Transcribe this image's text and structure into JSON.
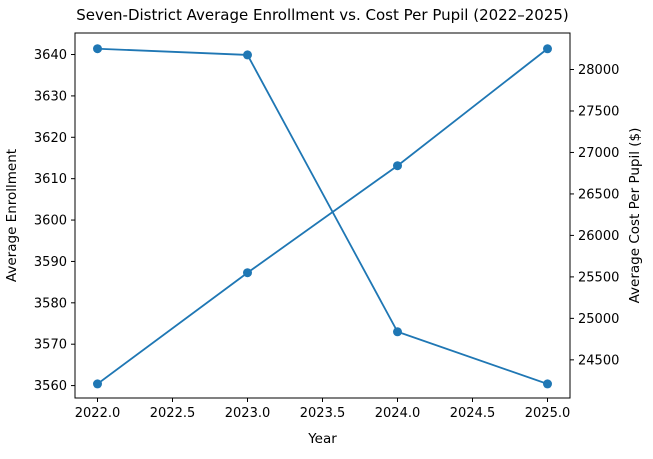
{
  "chart_data": {
    "type": "line",
    "title": "Seven-District Average Enrollment vs. Cost Per Pupil (2022–2025)",
    "xlabel": "Year",
    "ylabel_left": "Average Enrollment",
    "ylabel_right": "Average Cost Per Pupil ($)",
    "x": [
      2022,
      2023,
      2024,
      2025
    ],
    "series": [
      {
        "name": "Average Enrollment",
        "axis": "left",
        "color": "#1f77b4",
        "marker": "circle",
        "values": [
          3641.4,
          3639.9,
          3573.0,
          3560.4
        ]
      },
      {
        "name": "Average Cost Per Pupil ($)",
        "axis": "right",
        "color": "#1f77b4",
        "marker": "circle",
        "values": [
          24210,
          25550,
          26840,
          28250
        ]
      }
    ],
    "xlim": [
      2021.85,
      2025.15
    ],
    "ylim_left": [
      3557.0,
      3645.2
    ],
    "ylim_right": [
      24040,
      28440
    ],
    "xticks": [
      2022.0,
      2022.5,
      2023.0,
      2023.5,
      2024.0,
      2024.5,
      2025.0
    ],
    "yticks_left": [
      3560,
      3570,
      3580,
      3590,
      3600,
      3610,
      3620,
      3630,
      3640
    ],
    "yticks_right": [
      24500,
      25000,
      25500,
      26000,
      26500,
      27000,
      27500,
      28000
    ],
    "grid": false,
    "legend": "none",
    "axis_color": "#000000",
    "background_color": "#ffffff",
    "line_width": 1.8,
    "marker_radius": 4.5
  }
}
